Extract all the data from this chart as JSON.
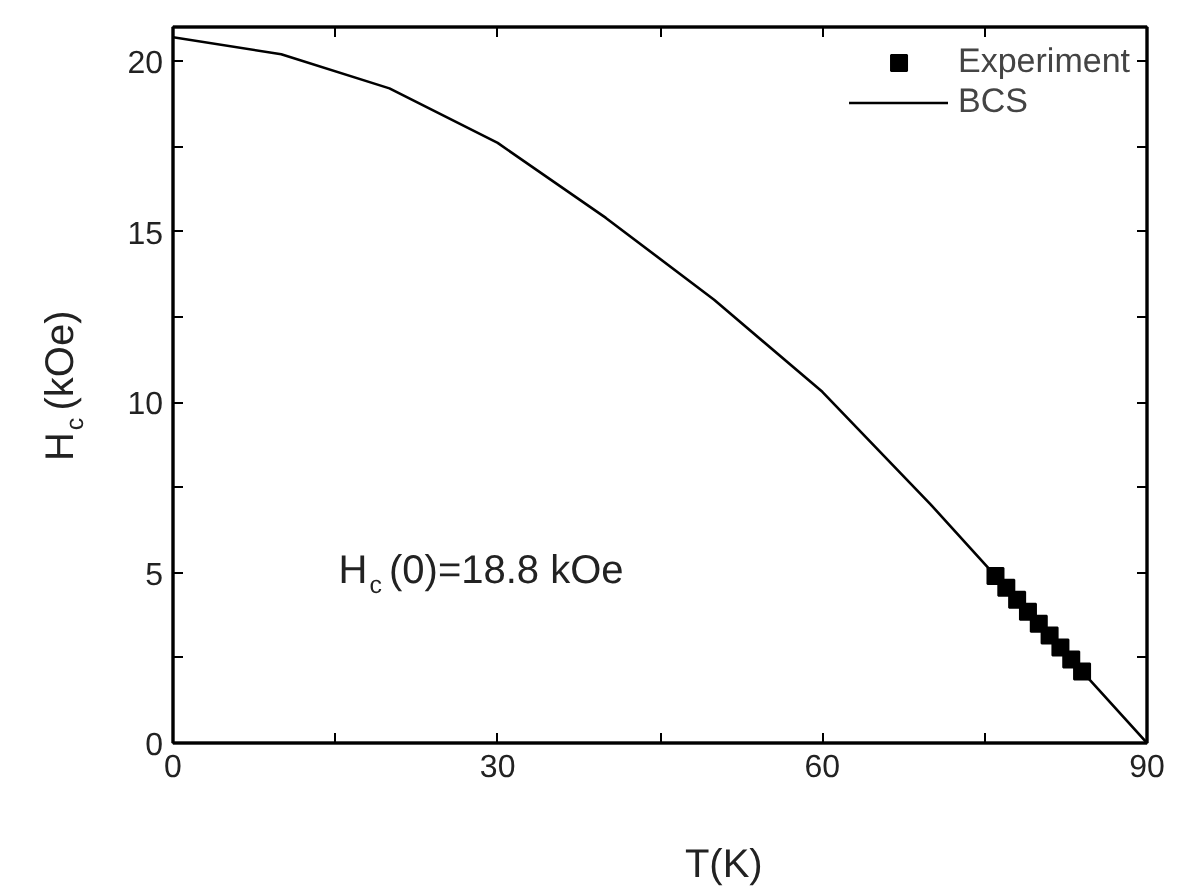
{
  "chart_data": {
    "type": "scatter",
    "xlabel": "T(K)",
    "ylabel": "H$_{c}$(kOe)",
    "annotations": [
      "H$_{c}$(0)=18.8 kOe"
    ],
    "xlim": [
      0,
      90
    ],
    "ylim": [
      0,
      21
    ],
    "xticks": [
      0,
      {
        "value": 15,
        "label": null
      },
      30,
      {
        "value": 45,
        "label": null
      },
      60,
      {
        "value": 75,
        "label": null
      },
      90
    ],
    "yticks": [
      0,
      {
        "value": 2.5,
        "label": null
      },
      5,
      {
        "value": 7.5,
        "label": null
      },
      10,
      {
        "value": 12.5,
        "label": null
      },
      15,
      {
        "value": 17.5,
        "label": null
      },
      20
    ],
    "grid": false,
    "legend": "top right",
    "series": [
      {
        "name": "Experiment",
        "marker": "square",
        "color": "#000000",
        "x": [
          76,
          77,
          78,
          79,
          80,
          81,
          82,
          83,
          84
        ],
        "values": [
          4.9,
          4.55,
          4.2,
          3.85,
          3.5,
          3.15,
          2.8,
          2.45,
          2.1
        ]
      },
      {
        "name": "BCS",
        "type": "line",
        "marker": "none",
        "line_style": "solid",
        "color": "#000000",
        "x": [
          0,
          10,
          20,
          30,
          40,
          50,
          60,
          70,
          76,
          80,
          84,
          90
        ],
        "values": [
          20.7,
          20.2,
          19.2,
          17.6,
          15.4,
          13.0,
          10.3,
          7.0,
          4.9,
          3.5,
          2.1,
          0
        ]
      }
    ]
  }
}
